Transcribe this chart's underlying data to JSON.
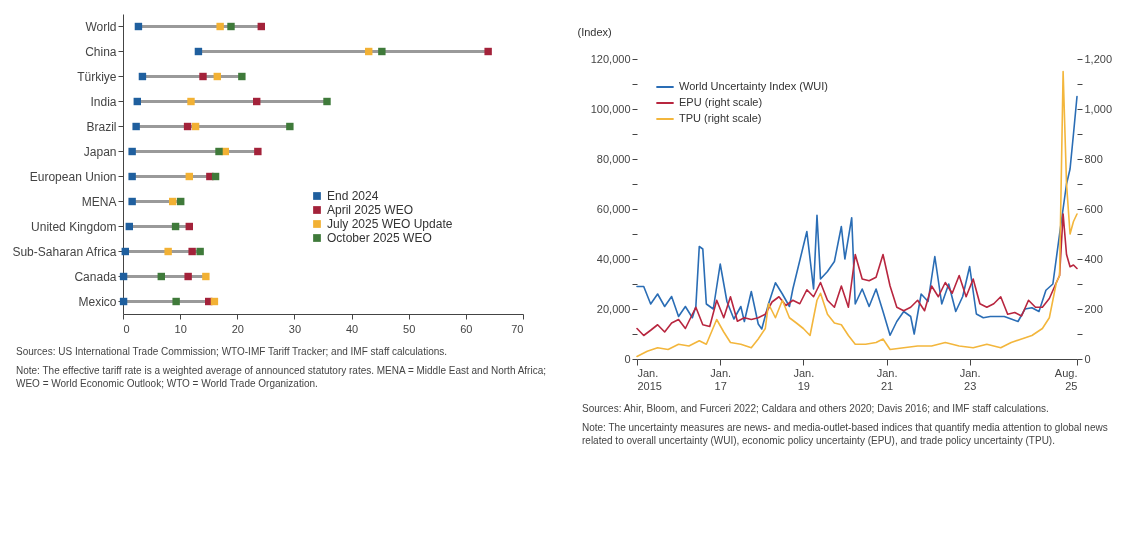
{
  "chart_data": [
    {
      "type": "scatter",
      "orientation": "horizontal",
      "marker": "square",
      "legend": "bottom right",
      "categories": [
        "World",
        "China",
        "Türkiye",
        "India",
        "Brazil",
        "Japan",
        "European Union",
        "MENA",
        "United Kingdom",
        "Sub-Saharan Africa",
        "Canada",
        "Mexico"
      ],
      "series": [
        {
          "name": "End 2024",
          "color": "#1f5f9e",
          "values": [
            2.7,
            13.2,
            3.4,
            2.5,
            2.3,
            1.6,
            1.6,
            1.6,
            1.1,
            0.4,
            0.1,
            0.1
          ]
        },
        {
          "name": "April 2025 WEO",
          "color": "#a3223a",
          "values": [
            24.2,
            63.9,
            14,
            23.4,
            11.3,
            23.6,
            15.2,
            null,
            11.6,
            12.1,
            11.4,
            15
          ]
        },
        {
          "name": "July 2025 WEO Update",
          "color": "#f2b134",
          "values": [
            17,
            43,
            16.5,
            11.9,
            12.7,
            17.9,
            11.6,
            8.7,
            null,
            7.9,
            14.5,
            16
          ]
        },
        {
          "name": "October 2025 WEO",
          "color": "#3f7a3a",
          "values": [
            18.9,
            45.3,
            20.8,
            35.7,
            29.2,
            16.8,
            16.2,
            10.1,
            9.2,
            13.5,
            6.7,
            9.3
          ]
        }
      ],
      "xlim": [
        0,
        70
      ],
      "xticks": [
        0,
        10,
        20,
        30,
        40,
        50,
        60,
        70
      ],
      "annotations": [
        "Sources: US International Trade Commission; WTO-IMF Tariff Tracker; and IMF staff calculations.",
        "Note: The effective tariff rate is a weighted average of announced statutory rates. MENA = Middle East and North Africa; WEO = World Economic Outlook; WTO = World Trade Organization."
      ]
    },
    {
      "type": "line",
      "ylabel": "(Index)",
      "legend": "top left",
      "xlim": [
        "2015-01",
        "2025-08"
      ],
      "xticks": [
        {
          "value": "2015-01",
          "label": "Jan. 2015"
        },
        {
          "value": "2017-01",
          "label": "Jan. 17"
        },
        {
          "value": "2019-01",
          "label": "Jan. 19"
        },
        {
          "value": "2021-01",
          "label": "Jan. 21"
        },
        {
          "value": "2023-01",
          "label": "Jan. 23"
        },
        {
          "value": "2025-08",
          "label": "Aug. 25"
        }
      ],
      "ylim": [
        0,
        120000
      ],
      "yticks": [
        0,
        {
          "value": 10000,
          "label": null
        },
        {
          "value": 20000,
          "label": "20,000"
        },
        {
          "value": 30000,
          "label": null
        },
        {
          "value": 40000,
          "label": "40,000"
        },
        {
          "value": 50000,
          "label": null
        },
        {
          "value": 60000,
          "label": "60,000"
        },
        {
          "value": 70000,
          "label": null
        },
        {
          "value": 80000,
          "label": "80,000"
        },
        {
          "value": 90000,
          "label": null
        },
        {
          "value": 100000,
          "label": "100,000"
        },
        {
          "value": 110000,
          "label": null
        },
        {
          "value": 120000,
          "label": "120,000"
        }
      ],
      "y2lim": [
        0,
        1200
      ],
      "y2ticks": [
        0,
        {
          "value": 100,
          "label": null
        },
        200,
        {
          "value": 300,
          "label": null
        },
        400,
        {
          "value": 500,
          "label": null
        },
        600,
        {
          "value": 700,
          "label": null
        },
        800,
        {
          "value": 900,
          "label": null
        },
        {
          "value": 1000,
          "label": "1,000"
        },
        {
          "value": 1100,
          "label": null
        },
        {
          "value": 1200,
          "label": "1,200"
        }
      ],
      "series": [
        {
          "name": "World Uncertainty Index (WUI)",
          "color": "#2a6db5",
          "x": [
            "2015-01",
            "2015-03",
            "2015-05",
            "2015-07",
            "2015-09",
            "2015-11",
            "2016-01",
            "2016-03",
            "2016-05",
            "2016-06",
            "2016-07",
            "2016-08",
            "2016-09",
            "2016-11",
            "2017-01",
            "2017-03",
            "2017-05",
            "2017-07",
            "2017-08",
            "2017-10",
            "2017-12",
            "2018-01",
            "2018-03",
            "2018-05",
            "2018-07",
            "2018-09",
            "2018-10",
            "2019-02",
            "2019-04",
            "2019-05",
            "2019-06",
            "2019-08",
            "2019-10",
            "2019-12",
            "2020-01",
            "2020-03",
            "2020-04",
            "2020-06",
            "2020-08",
            "2020-10",
            "2020-12",
            "2021-02",
            "2021-04",
            "2021-06",
            "2021-08",
            "2021-09",
            "2021-11",
            "2022-01",
            "2022-03",
            "2022-05",
            "2022-07",
            "2022-09",
            "2022-11",
            "2023-01",
            "2023-03",
            "2023-05",
            "2023-07",
            "2023-09",
            "2023-11",
            "2024-01",
            "2024-03",
            "2024-05",
            "2024-07",
            "2024-09",
            "2024-11",
            "2025-01",
            "2025-03",
            "2025-05",
            "2025-06",
            "2025-07",
            "2025-08"
          ],
          "values": [
            29000,
            29000,
            22000,
            26000,
            21000,
            25000,
            17000,
            21000,
            16500,
            21000,
            45000,
            44000,
            22000,
            20000,
            38000,
            23000,
            16000,
            21000,
            15000,
            27000,
            14000,
            12000,
            22000,
            30500,
            26000,
            21000,
            28000,
            51000,
            28000,
            57500,
            32000,
            35000,
            39000,
            53000,
            40000,
            56500,
            22000,
            28000,
            21000,
            28000,
            19000,
            9500,
            15000,
            19000,
            17000,
            10000,
            26000,
            23000,
            41000,
            22000,
            30000,
            19000,
            25000,
            37000,
            18000,
            16500,
            17000,
            17000,
            17000,
            16000,
            15000,
            20000,
            20500,
            19000,
            27500,
            30000,
            50000,
            70000,
            76000,
            90000,
            105000
          ]
        },
        {
          "name": "EPU (right scale)",
          "color": "#b8263f",
          "axis": "y2",
          "x": [
            "2015-01",
            "2015-03",
            "2015-05",
            "2015-07",
            "2015-09",
            "2015-11",
            "2016-01",
            "2016-03",
            "2016-06",
            "2016-08",
            "2016-10",
            "2016-12",
            "2017-02",
            "2017-04",
            "2017-06",
            "2017-08",
            "2017-10",
            "2017-12",
            "2018-02",
            "2018-04",
            "2018-06",
            "2018-08",
            "2018-10",
            "2018-12",
            "2019-02",
            "2019-04",
            "2019-06",
            "2019-08",
            "2019-10",
            "2019-12",
            "2020-02",
            "2020-04",
            "2020-06",
            "2020-08",
            "2020-10",
            "2020-12",
            "2021-02",
            "2021-04",
            "2021-06",
            "2021-08",
            "2021-10",
            "2021-12",
            "2022-02",
            "2022-04",
            "2022-06",
            "2022-08",
            "2022-10",
            "2022-12",
            "2023-02",
            "2023-04",
            "2023-06",
            "2023-08",
            "2023-10",
            "2023-12",
            "2024-02",
            "2024-04",
            "2024-06",
            "2024-08",
            "2024-10",
            "2024-12",
            "2025-02",
            "2025-03",
            "2025-04",
            "2025-05",
            "2025-06",
            "2025-07",
            "2025-08"
          ],
          "values": [
            122,
            94,
            115,
            137,
            108,
            144,
            158,
            122,
            207,
            137,
            130,
            235,
            165,
            249,
            151,
            165,
            158,
            165,
            179,
            228,
            249,
            214,
            235,
            221,
            277,
            249,
            306,
            235,
            207,
            292,
            207,
            418,
            320,
            313,
            327,
            418,
            292,
            207,
            193,
            207,
            235,
            193,
            292,
            249,
            306,
            263,
            334,
            249,
            320,
            221,
            207,
            221,
            249,
            179,
            186,
            172,
            235,
            207,
            207,
            242,
            306,
            334,
            580,
            418,
            369,
            376,
            362
          ]
        },
        {
          "name": "TPU (right scale)",
          "color": "#f3b63c",
          "axis": "y2",
          "x": [
            "2015-01",
            "2015-04",
            "2015-07",
            "2015-10",
            "2016-01",
            "2016-04",
            "2016-07",
            "2016-09",
            "2016-12",
            "2017-02",
            "2017-04",
            "2017-07",
            "2017-10",
            "2017-12",
            "2018-02",
            "2018-03",
            "2018-05",
            "2018-07",
            "2018-09",
            "2018-11",
            "2019-01",
            "2019-03",
            "2019-05",
            "2019-06",
            "2019-08",
            "2019-10",
            "2019-12",
            "2020-02",
            "2020-04",
            "2020-07",
            "2020-10",
            "2020-12",
            "2021-02",
            "2021-06",
            "2021-10",
            "2022-02",
            "2022-06",
            "2022-10",
            "2023-02",
            "2023-06",
            "2023-10",
            "2024-01",
            "2024-04",
            "2024-07",
            "2024-10",
            "2024-12",
            "2025-02",
            "2025-03",
            "2025-04",
            "2025-05",
            "2025-06",
            "2025-07",
            "2025-08"
          ],
          "values": [
            10,
            31,
            45,
            38,
            59,
            52,
            73,
            59,
            158,
            108,
            66,
            59,
            45,
            80,
            122,
            221,
            165,
            235,
            165,
            144,
            122,
            94,
            235,
            263,
            179,
            144,
            137,
            94,
            59,
            59,
            66,
            80,
            38,
            45,
            52,
            52,
            66,
            52,
            45,
            59,
            45,
            66,
            80,
            94,
            122,
            165,
            306,
            334,
            1150,
            700,
            500,
            550,
            580
          ]
        }
      ],
      "annotations": [
        "Sources: Ahir, Bloom, and Furceri 2022; Caldara and others 2020; Davis 2016; and IMF staff calculations.",
        "Note: The uncertainty measures are news- and media-outlet-based indices that quantify media attention to global news related to overall uncertainty (WUI), economic policy uncertainty (EPU), and trade policy uncertainty (TPU)."
      ]
    }
  ]
}
